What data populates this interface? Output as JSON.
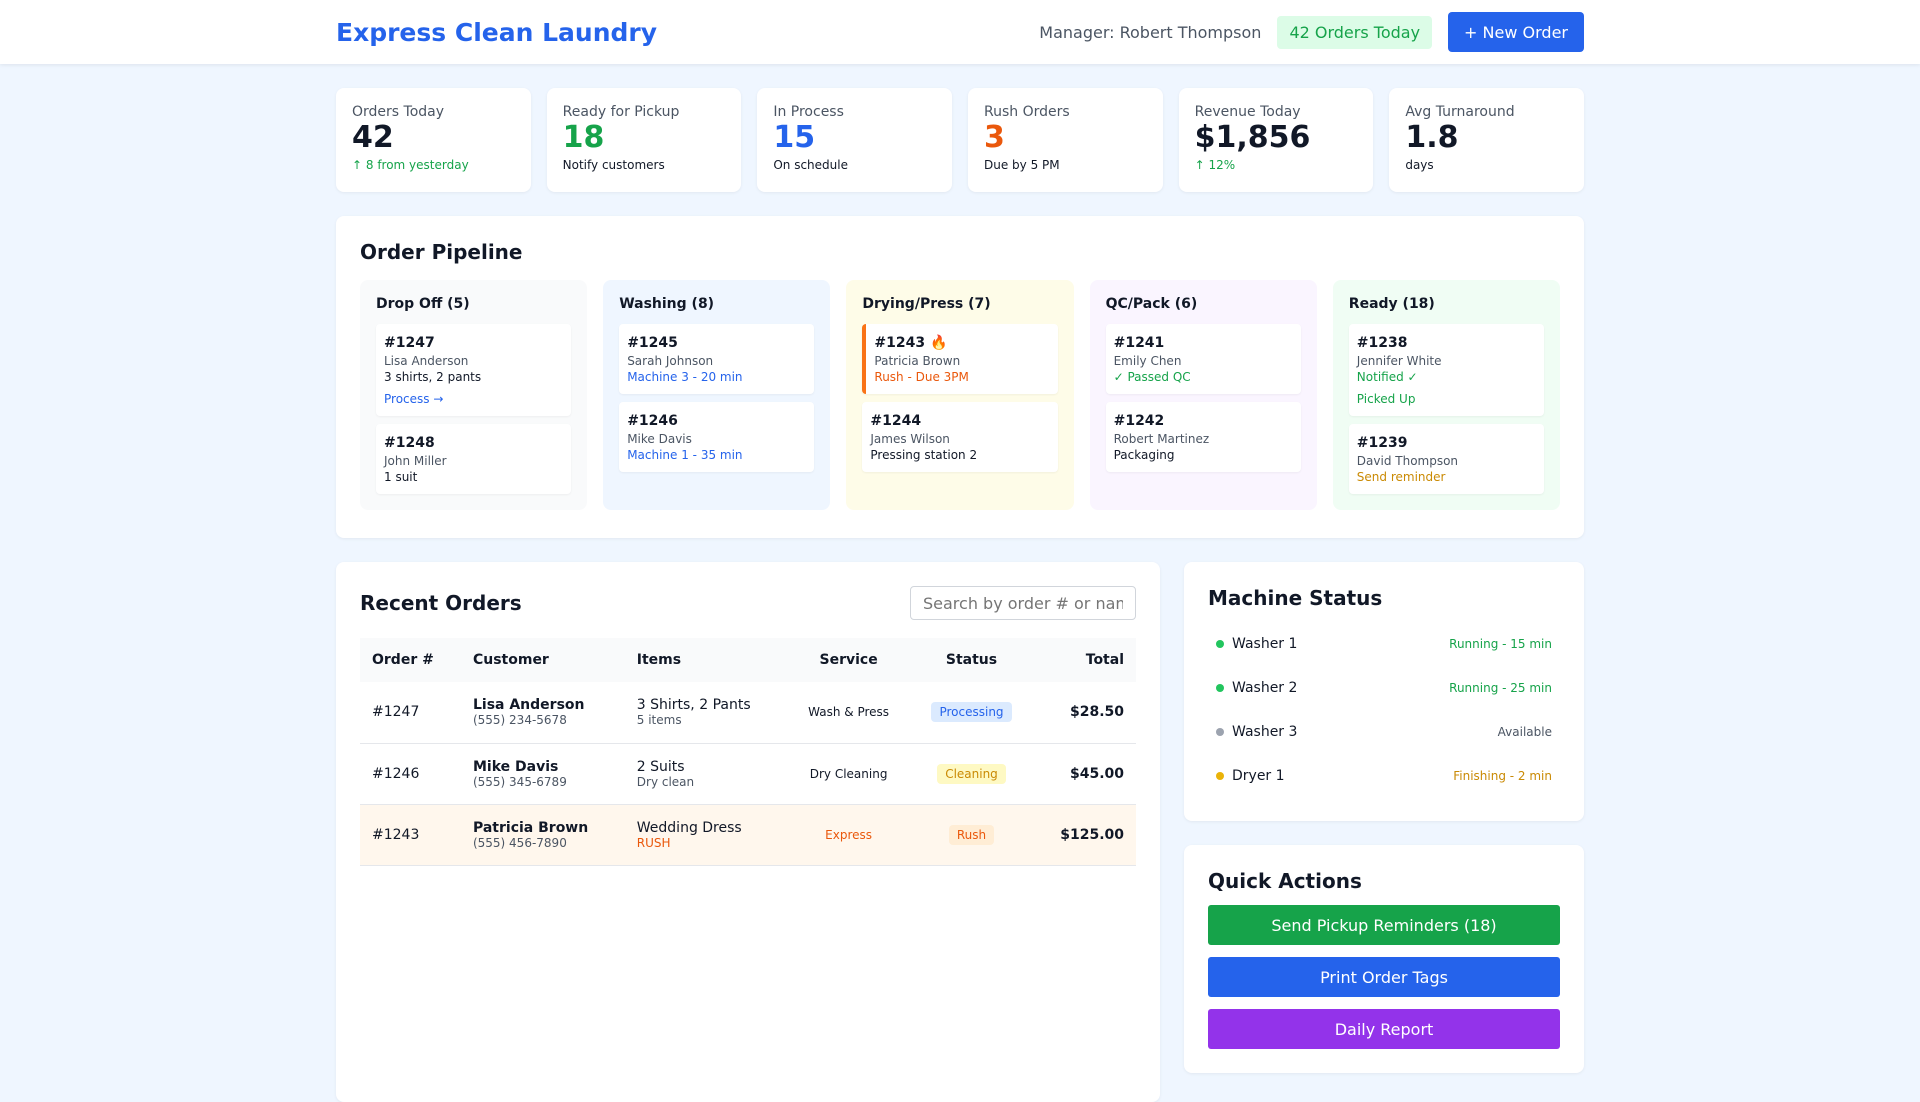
{
  "header": {
    "title": "Express Clean Laundry",
    "manager": "Manager: Robert Thompson",
    "orders_badge": "42 Orders Today",
    "new_order": "+ New Order"
  },
  "stats": [
    {
      "label": "Orders Today",
      "value": "42",
      "sub": "↑ 8 from yesterday",
      "color": "#111827",
      "sub_color": "#16a34a"
    },
    {
      "label": "Ready for Pickup",
      "value": "18",
      "sub": "Notify customers",
      "color": "#16a34a",
      "sub_color": "#111827"
    },
    {
      "label": "In Process",
      "value": "15",
      "sub": "On schedule",
      "color": "#2563eb",
      "sub_color": "#111827"
    },
    {
      "label": "Rush Orders",
      "value": "3",
      "sub": "Due by 5 PM",
      "color": "#ea580c",
      "sub_color": "#111827"
    },
    {
      "label": "Revenue Today",
      "value": "$1,856",
      "sub": "↑ 12%",
      "color": "#111827",
      "sub_color": "#16a34a"
    },
    {
      "label": "Avg Turnaround",
      "value": "1.8",
      "sub": "days",
      "color": "#111827",
      "sub_color": "#111827"
    }
  ],
  "pipeline": {
    "title": "Order Pipeline",
    "columns": [
      {
        "title": "Drop Off (5)",
        "bg": "#f9fafb",
        "cards": [
          {
            "id": "#1247",
            "name": "Lisa Anderson",
            "detail": "3 shirts, 2 pants",
            "detail_color": "#111827",
            "action": "Process →",
            "action_color": "#2563eb"
          },
          {
            "id": "#1248",
            "name": "John Miller",
            "detail": "1 suit",
            "detail_color": "#111827"
          }
        ]
      },
      {
        "title": "Washing (8)",
        "bg": "#eff6ff",
        "cards": [
          {
            "id": "#1245",
            "name": "Sarah Johnson",
            "detail": "Machine 3 - 20 min",
            "detail_color": "#2563eb"
          },
          {
            "id": "#1246",
            "name": "Mike Davis",
            "detail": "Machine 1 - 35 min",
            "detail_color": "#2563eb"
          }
        ]
      },
      {
        "title": "Drying/Press (7)",
        "bg": "#fefce8",
        "cards": [
          {
            "id": "#1243 🔥",
            "name": "Patricia Brown",
            "detail": "Rush - Due 3PM",
            "detail_color": "#ea580c",
            "rush": true
          },
          {
            "id": "#1244",
            "name": "James Wilson",
            "detail": "Pressing station 2",
            "detail_color": "#111827"
          }
        ]
      },
      {
        "title": "QC/Pack (6)",
        "bg": "#faf5ff",
        "cards": [
          {
            "id": "#1241",
            "name": "Emily Chen",
            "detail": "✓ Passed QC",
            "detail_color": "#16a34a"
          },
          {
            "id": "#1242",
            "name": "Robert Martinez",
            "detail": "Packaging",
            "detail_color": "#111827"
          }
        ]
      },
      {
        "title": "Ready (18)",
        "bg": "#f0fdf4",
        "cards": [
          {
            "id": "#1238",
            "name": "Jennifer White",
            "detail": "Notified ✓",
            "detail_color": "#16a34a",
            "action": "Picked Up",
            "action_color": "#16a34a"
          },
          {
            "id": "#1239",
            "name": "David Thompson",
            "detail": "Send reminder",
            "detail_color": "#ca8a04"
          }
        ]
      }
    ]
  },
  "orders": {
    "title": "Recent Orders",
    "search_placeholder": "Search by order # or name",
    "headers": [
      "Order #",
      "Customer",
      "Items",
      "Service",
      "Status",
      "Total"
    ],
    "rows": [
      {
        "id": "#1247",
        "customer": "Lisa Anderson",
        "phone": "(555) 234-5678",
        "items": "3 Shirts, 2 Pants",
        "items_sub": "5 items",
        "service": "Wash & Press",
        "status": "Processing",
        "total": "$28.50",
        "status_bg": "#dbeafe",
        "status_color": "#2563eb"
      },
      {
        "id": "#1246",
        "customer": "Mike Davis",
        "phone": "(555) 345-6789",
        "items": "2 Suits",
        "items_sub": "Dry clean",
        "service": "Dry Cleaning",
        "status": "Cleaning",
        "total": "$45.00",
        "status_bg": "#fef9c3",
        "status_color": "#ca8a04"
      },
      {
        "id": "#1243",
        "customer": "Patricia Brown",
        "phone": "(555) 456-7890",
        "items": "Wedding Dress",
        "items_sub": "RUSH",
        "service": "Express",
        "status": "Rush",
        "total": "$125.00",
        "status_bg": "#ffedd5",
        "status_color": "#ea580c",
        "rush": true
      }
    ]
  },
  "machines": {
    "title": "Machine Status",
    "items": [
      {
        "name": "Washer 1",
        "status": "Running - 15 min",
        "color": "#22c55e",
        "text_color": "#16a34a"
      },
      {
        "name": "Washer 2",
        "status": "Running - 25 min",
        "color": "#22c55e",
        "text_color": "#16a34a"
      },
      {
        "name": "Washer 3",
        "status": "Available",
        "color": "#9ca3af",
        "text_color": "#4b5563"
      },
      {
        "name": "Dryer 1",
        "status": "Finishing - 2 min",
        "color": "#eab308",
        "text_color": "#ca8a04"
      }
    ]
  },
  "quick_actions": {
    "title": "Quick Actions",
    "buttons": [
      {
        "label": "Send Pickup Reminders (18)",
        "color": "#16a34a"
      },
      {
        "label": "Print Order Tags",
        "color": "#2563eb"
      },
      {
        "label": "Daily Report",
        "color": "#9333ea"
      }
    ]
  }
}
